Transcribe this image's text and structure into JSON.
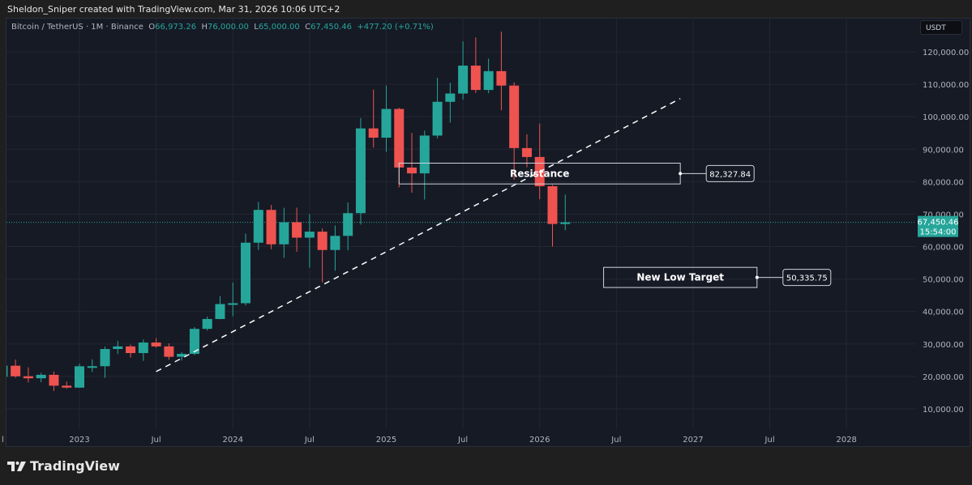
{
  "credit": "Sheldon_Sniper created with TradingView.com, Mar 31, 2026 10:06 UTC+2",
  "legend": {
    "symbol": "Bitcoin / TetherUS · 1M · Binance",
    "o_label": "O",
    "o": "66,973.26",
    "h_label": "H",
    "h": "76,000.00",
    "l_label": "L",
    "l": "65,000.00",
    "c_label": "C",
    "c": "67,450.46",
    "change": "+477.20 (+0.71%)"
  },
  "currency": "USDT",
  "brand": "TradingView",
  "colors": {
    "up": "#26a69a",
    "down": "#ef5350",
    "background": "#161a25",
    "grid": "#232733",
    "annotation": "#d1d4dc"
  },
  "chart_data": {
    "type": "candlestick",
    "interval": "1M",
    "ylim": [
      3000,
      130000
    ],
    "y_ticks": [
      "10,000.00",
      "20,000.00",
      "30,000.00",
      "40,000.00",
      "50,000.00",
      "60,000.00",
      "70,000.00",
      "80,000.00",
      "90,000.00",
      "100,000.00",
      "110,000.00",
      "120,000.00"
    ],
    "y_tick_values": [
      10000,
      20000,
      30000,
      40000,
      50000,
      60000,
      70000,
      80000,
      90000,
      100000,
      110000,
      120000
    ],
    "x_ticks": [
      {
        "label": "l",
        "date": "2022-07"
      },
      {
        "label": "2023",
        "date": "2023-01"
      },
      {
        "label": "Jul",
        "date": "2023-07"
      },
      {
        "label": "2024",
        "date": "2024-01"
      },
      {
        "label": "Jul",
        "date": "2024-07"
      },
      {
        "label": "2025",
        "date": "2025-01"
      },
      {
        "label": "Jul",
        "date": "2025-07"
      },
      {
        "label": "2026",
        "date": "2026-01"
      },
      {
        "label": "Jul",
        "date": "2026-07"
      },
      {
        "label": "2027",
        "date": "2027-01"
      },
      {
        "label": "Jul",
        "date": "2027-07"
      },
      {
        "label": "2028",
        "date": "2028-01"
      }
    ],
    "grid": true,
    "candles": [
      {
        "date": "2022-07",
        "o": 19900,
        "h": 24600,
        "l": 18800,
        "c": 23300
      },
      {
        "date": "2022-08",
        "o": 23300,
        "h": 25200,
        "l": 19600,
        "c": 20050
      },
      {
        "date": "2022-09",
        "o": 20050,
        "h": 22800,
        "l": 18150,
        "c": 19430
      },
      {
        "date": "2022-10",
        "o": 19430,
        "h": 21100,
        "l": 18200,
        "c": 20500
      },
      {
        "date": "2022-11",
        "o": 20500,
        "h": 21500,
        "l": 15500,
        "c": 17150
      },
      {
        "date": "2022-12",
        "o": 17150,
        "h": 18400,
        "l": 16250,
        "c": 16550
      },
      {
        "date": "2023-01",
        "o": 16550,
        "h": 23950,
        "l": 16500,
        "c": 23130
      },
      {
        "date": "2023-02",
        "o": 23130,
        "h": 25250,
        "l": 21350,
        "c": 23150
      },
      {
        "date": "2023-03",
        "o": 23150,
        "h": 29200,
        "l": 19550,
        "c": 28450
      },
      {
        "date": "2023-04",
        "o": 28450,
        "h": 31000,
        "l": 26900,
        "c": 29250
      },
      {
        "date": "2023-05",
        "o": 29250,
        "h": 29800,
        "l": 25800,
        "c": 27200
      },
      {
        "date": "2023-06",
        "o": 27200,
        "h": 31400,
        "l": 24800,
        "c": 30450
      },
      {
        "date": "2023-07",
        "o": 30450,
        "h": 31800,
        "l": 28850,
        "c": 29250
      },
      {
        "date": "2023-08",
        "o": 29250,
        "h": 30200,
        "l": 25150,
        "c": 26050
      },
      {
        "date": "2023-09",
        "o": 26050,
        "h": 27500,
        "l": 24900,
        "c": 26950
      },
      {
        "date": "2023-10",
        "o": 26950,
        "h": 35200,
        "l": 26550,
        "c": 34650
      },
      {
        "date": "2023-11",
        "o": 34650,
        "h": 38450,
        "l": 34100,
        "c": 37700
      },
      {
        "date": "2023-12",
        "o": 37700,
        "h": 44750,
        "l": 37600,
        "c": 42300
      },
      {
        "date": "2024-01",
        "o": 42300,
        "h": 48950,
        "l": 38550,
        "c": 42550
      },
      {
        "date": "2024-02",
        "o": 42550,
        "h": 64000,
        "l": 41850,
        "c": 61200
      },
      {
        "date": "2024-03",
        "o": 61200,
        "h": 73800,
        "l": 59000,
        "c": 71300
      },
      {
        "date": "2024-04",
        "o": 71300,
        "h": 72800,
        "l": 59200,
        "c": 60700
      },
      {
        "date": "2024-05",
        "o": 60700,
        "h": 71950,
        "l": 56550,
        "c": 67500
      },
      {
        "date": "2024-06",
        "o": 67500,
        "h": 72000,
        "l": 58400,
        "c": 62750
      },
      {
        "date": "2024-07",
        "o": 62750,
        "h": 70000,
        "l": 53500,
        "c": 64600
      },
      {
        "date": "2024-08",
        "o": 64600,
        "h": 65600,
        "l": 49000,
        "c": 58950
      },
      {
        "date": "2024-09",
        "o": 58950,
        "h": 66500,
        "l": 52550,
        "c": 63300
      },
      {
        "date": "2024-10",
        "o": 63300,
        "h": 73600,
        "l": 58850,
        "c": 70300
      },
      {
        "date": "2024-11",
        "o": 70300,
        "h": 99600,
        "l": 66800,
        "c": 96400
      },
      {
        "date": "2024-12",
        "o": 96400,
        "h": 108350,
        "l": 90500,
        "c": 93550
      },
      {
        "date": "2025-01",
        "o": 93550,
        "h": 109600,
        "l": 89200,
        "c": 102400
      },
      {
        "date": "2025-02",
        "o": 102400,
        "h": 102750,
        "l": 78250,
        "c": 84350
      },
      {
        "date": "2025-03",
        "o": 84350,
        "h": 95000,
        "l": 76600,
        "c": 82550
      },
      {
        "date": "2025-04",
        "o": 82550,
        "h": 95750,
        "l": 74500,
        "c": 94200
      },
      {
        "date": "2025-05",
        "o": 94200,
        "h": 112000,
        "l": 93350,
        "c": 104600
      },
      {
        "date": "2025-06",
        "o": 104600,
        "h": 110500,
        "l": 98200,
        "c": 107150
      },
      {
        "date": "2025-07",
        "o": 107150,
        "h": 123200,
        "l": 105250,
        "c": 115750
      },
      {
        "date": "2025-08",
        "o": 115750,
        "h": 124450,
        "l": 107350,
        "c": 108250
      },
      {
        "date": "2025-09",
        "o": 108250,
        "h": 117900,
        "l": 107250,
        "c": 114050
      },
      {
        "date": "2025-10",
        "o": 114050,
        "h": 126200,
        "l": 102000,
        "c": 109600
      },
      {
        "date": "2025-11",
        "o": 109600,
        "h": 110600,
        "l": 80600,
        "c": 90350
      },
      {
        "date": "2025-12",
        "o": 90350,
        "h": 94600,
        "l": 84450,
        "c": 87600
      },
      {
        "date": "2026-01",
        "o": 87600,
        "h": 97900,
        "l": 74600,
        "c": 78600
      },
      {
        "date": "2026-02",
        "o": 78600,
        "h": 79000,
        "l": 60000,
        "c": 66970
      },
      {
        "date": "2026-03",
        "o": 66973.26,
        "h": 76000,
        "l": 65000,
        "c": 67450.46
      }
    ],
    "last_price": {
      "value": 67450.46,
      "label": "67,450.46",
      "countdown": "15:54:00"
    },
    "trendline": {
      "from": {
        "date": "2023-07",
        "price": 21500
      },
      "to": {
        "date": "2026-12",
        "price": 105600
      },
      "style": "dashed"
    },
    "annotations": [
      {
        "text": "Resistance",
        "from_date": "2025-02",
        "to_date": "2026-12",
        "top": 85700,
        "bottom": 79300,
        "price_label": "82,327.84"
      },
      {
        "text": "New Low Target",
        "from_date": "2026-06",
        "to_date": "2027-06",
        "top": 53600,
        "bottom": 47400,
        "price_label": "50,335.75"
      }
    ]
  }
}
